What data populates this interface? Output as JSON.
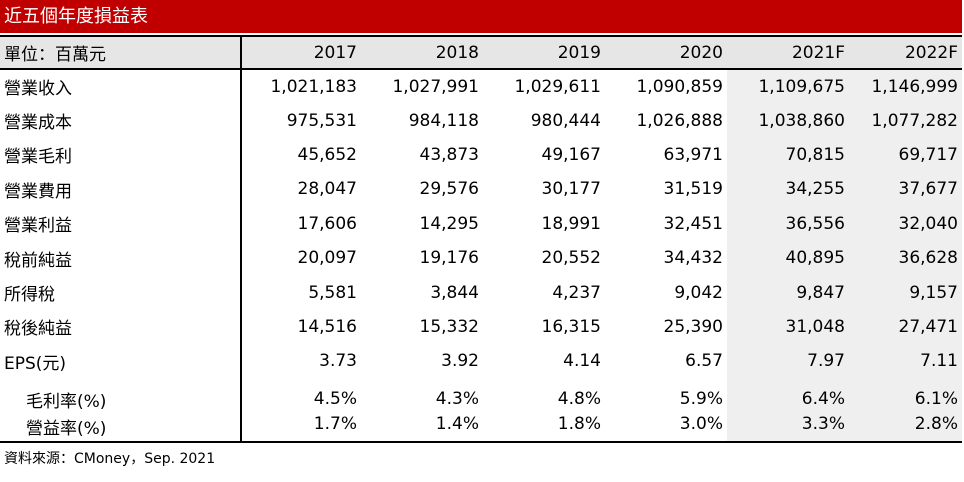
{
  "title": "近五個年度損益表",
  "header": {
    "unit_label": "單位：百萬元",
    "years": [
      "2017",
      "2018",
      "2019",
      "2020",
      "2021F",
      "2022F"
    ]
  },
  "rows": [
    {
      "label": "營業收入",
      "values": [
        "1,021,183",
        "1,027,991",
        "1,029,611",
        "1,090,859",
        "1,109,675",
        "1,146,999"
      ]
    },
    {
      "label": "營業成本",
      "values": [
        "975,531",
        "984,118",
        "980,444",
        "1,026,888",
        "1,038,860",
        "1,077,282"
      ]
    },
    {
      "label": "營業毛利",
      "values": [
        "45,652",
        "43,873",
        "49,167",
        "63,971",
        "70,815",
        "69,717"
      ]
    },
    {
      "label": "營業費用",
      "values": [
        "28,047",
        "29,576",
        "30,177",
        "31,519",
        "34,255",
        "37,677"
      ]
    },
    {
      "label": "營業利益",
      "values": [
        "17,606",
        "14,295",
        "18,991",
        "32,451",
        "36,556",
        "32,040"
      ]
    },
    {
      "label": "稅前純益",
      "values": [
        "20,097",
        "19,176",
        "20,552",
        "34,432",
        "40,895",
        "36,628"
      ]
    },
    {
      "label": "所得稅",
      "values": [
        "5,581",
        "3,844",
        "4,237",
        "9,042",
        "9,847",
        "9,157"
      ]
    },
    {
      "label": "稅後純益",
      "values": [
        "14,516",
        "15,332",
        "16,315",
        "25,390",
        "31,048",
        "27,471"
      ]
    },
    {
      "label": "EPS(元)",
      "values": [
        "3.73",
        "3.92",
        "4.14",
        "6.57",
        "7.97",
        "7.11"
      ]
    }
  ],
  "ratio_rows": [
    {
      "label": "毛利率(%)",
      "values": [
        "4.5%",
        "4.3%",
        "4.8%",
        "5.9%",
        "6.4%",
        "6.1%"
      ]
    },
    {
      "label": "營益率(%)",
      "values": [
        "1.7%",
        "1.4%",
        "1.8%",
        "3.0%",
        "3.3%",
        "2.8%"
      ]
    }
  ],
  "source": "資料來源：CMoney，Sep. 2021",
  "colors": {
    "title_bg": "#c00000",
    "header_bg": "#e6e6e6",
    "forecast_bg": "#efefef"
  }
}
